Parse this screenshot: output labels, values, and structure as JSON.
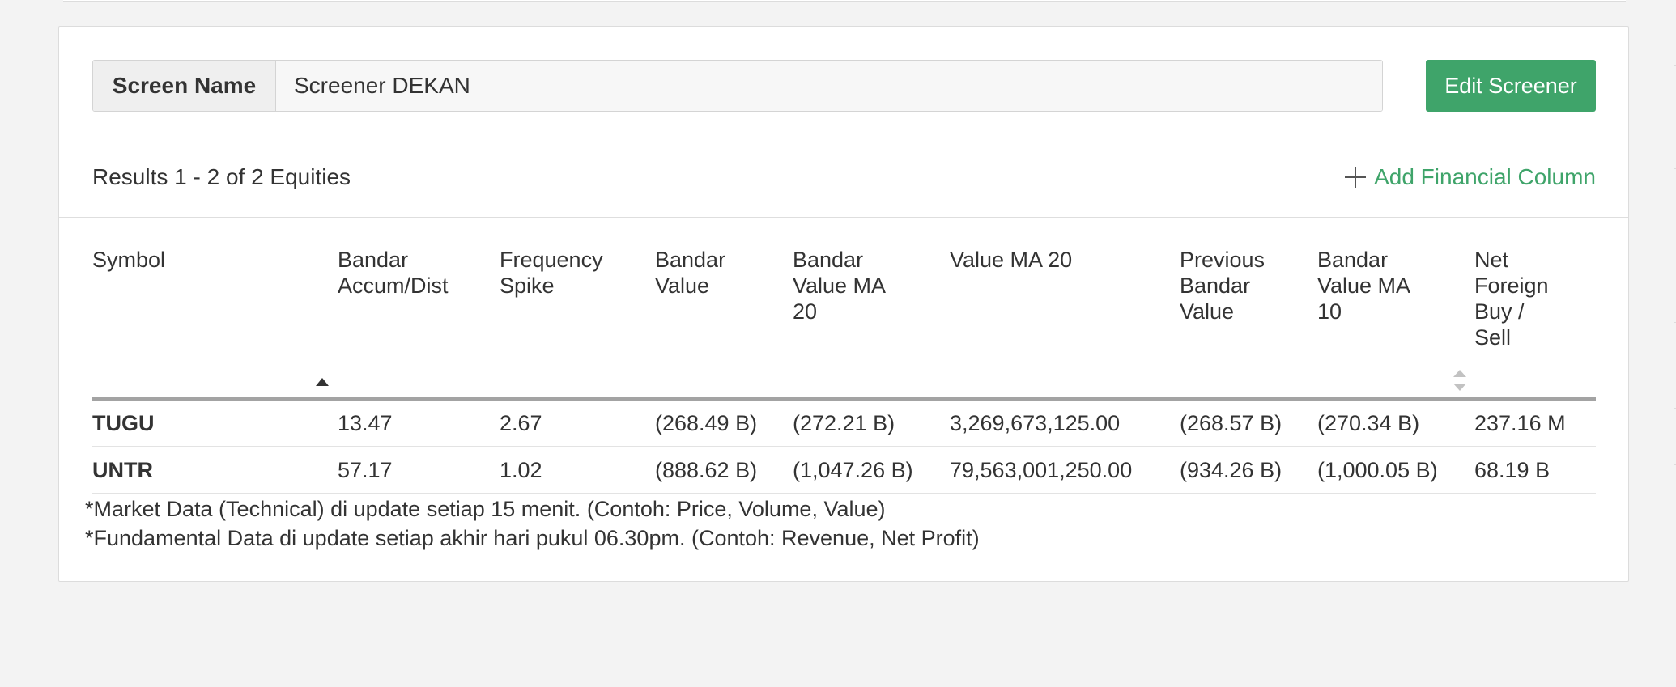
{
  "screener": {
    "name_label": "Screen Name",
    "name_value": "Screener DEKAN",
    "edit_button": "Edit Screener"
  },
  "results": {
    "summary": "Results 1 - 2 of 2 Equities",
    "add_column_label": "Add Financial Column"
  },
  "table": {
    "columns": [
      {
        "label": "Symbol",
        "sort": "ascending"
      },
      {
        "label": "Bandar Accum/Dist"
      },
      {
        "label": "Frequency Spike"
      },
      {
        "label": "Bandar Value"
      },
      {
        "label": "Bandar Value MA 20"
      },
      {
        "label": "Value MA 20"
      },
      {
        "label": "Previous Bandar Value"
      },
      {
        "label": "Bandar Value MA 10",
        "sort": "unsorted"
      },
      {
        "label": "Net Foreign Buy / Sell"
      }
    ],
    "rows": [
      [
        "TUGU",
        "13.47",
        "2.67",
        "(268.49 B)",
        "(272.21 B)",
        "3,269,673,125.00",
        "(268.57 B)",
        "(270.34 B)",
        "237.16 M"
      ],
      [
        "UNTR",
        "57.17",
        "1.02",
        "(888.62 B)",
        "(1,047.26 B)",
        "79,563,001,250.00",
        "(934.26 B)",
        "(1,000.05 B)",
        "68.19 B"
      ]
    ]
  },
  "footnotes": [
    "*Market Data (Technical) di update setiap 15 menit. (Contoh: Price, Volume, Value)",
    "*Fundamental Data di update setiap akhir hari pukul 06.30pm. (Contoh: Revenue, Net Profit)"
  ],
  "colors": {
    "accent_green": "#3fa46a",
    "page_background": "#f3f3f3"
  }
}
